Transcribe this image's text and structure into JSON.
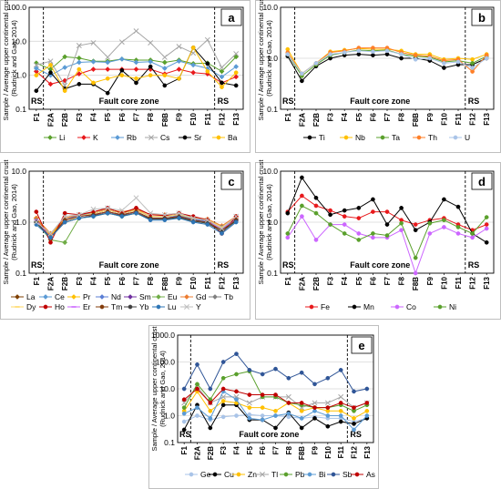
{
  "chart_data": [
    {
      "panel": "a",
      "type": "line",
      "ylabel": "Sample / Average upper continental crust (Rudnick and Gao, 2014)",
      "yscale": "log",
      "ylim": [
        0.1,
        100
      ],
      "yticks": [
        "0.1",
        "1.0",
        "10.0",
        "100.0"
      ],
      "categories": [
        "F1",
        "F2A",
        "F2B",
        "F3",
        "F4",
        "F5",
        "F6",
        "F7",
        "F8",
        "F8B",
        "F9",
        "F10",
        "F11",
        "F12",
        "F13"
      ],
      "zone_labels": {
        "left": "RS",
        "center": "Fault core zone",
        "right": "RS"
      },
      "series": [
        {
          "name": "Li",
          "color": "#5aa02c",
          "marker": "diamond",
          "values": [
            2.3,
            1.5,
            3.5,
            3.2,
            2.6,
            2.6,
            3.0,
            2.8,
            2.8,
            2.4,
            2.8,
            2.2,
            2.3,
            1.3,
            3.5
          ]
        },
        {
          "name": "K",
          "color": "#e8191c",
          "marker": "diamond",
          "values": [
            1.3,
            0.55,
            0.7,
            1.1,
            1.5,
            1.5,
            1.5,
            1.5,
            1.5,
            1.1,
            1.5,
            1.2,
            1.1,
            0.6,
            0.9
          ]
        },
        {
          "name": "Rb",
          "color": "#5b9bd5",
          "marker": "diamond",
          "values": [
            1.6,
            1.0,
            1.7,
            2.4,
            2.5,
            2.4,
            3.0,
            2.4,
            2.5,
            1.6,
            2.6,
            2.0,
            1.6,
            0.9,
            1.8
          ]
        },
        {
          "name": "Cs",
          "color": "#a6a6a6",
          "marker": "x",
          "values": [
            2.0,
            2.6,
            0.5,
            7.5,
            9.0,
            3.4,
            9.5,
            20.0,
            9.0,
            3.4,
            7.0,
            4.5,
            11.0,
            1.7,
            4.3
          ]
        },
        {
          "name": "Sr",
          "color": "#000000",
          "marker": "circle",
          "values": [
            0.35,
            1.2,
            0.4,
            0.55,
            0.55,
            0.3,
            1.4,
            0.6,
            1.8,
            0.5,
            0.8,
            6.5,
            2.2,
            0.6,
            0.5
          ]
        },
        {
          "name": "Ba",
          "color": "#ffc000",
          "marker": "circle",
          "values": [
            1.0,
            2.0,
            0.35,
            1.5,
            0.6,
            0.8,
            1.0,
            0.8,
            1.0,
            1.0,
            0.8,
            6.5,
            1.3,
            0.45,
            1.2
          ]
        }
      ]
    },
    {
      "panel": "b",
      "type": "line",
      "ylabel": "Sample / Average upper continental crust (Rudnick and Gao, 2014)",
      "yscale": "log",
      "ylim": [
        0.1,
        10
      ],
      "yticks": [
        "0.1",
        "1.0",
        "10.0"
      ],
      "categories": [
        "F1",
        "F2A",
        "F2B",
        "F3",
        "F4",
        "F5",
        "F6",
        "F7",
        "F8",
        "F8B",
        "F9",
        "F10",
        "F11",
        "F12",
        "F13"
      ],
      "zone_labels": {
        "left": "RS",
        "center": "Fault core zone",
        "right": "RS"
      },
      "series": [
        {
          "name": "Ti",
          "color": "#000000",
          "marker": "circle",
          "values": [
            1.1,
            0.36,
            0.7,
            1.0,
            1.15,
            1.2,
            1.15,
            1.2,
            1.0,
            1.0,
            0.9,
            0.65,
            0.75,
            0.75,
            1.0
          ]
        },
        {
          "name": "Nb",
          "color": "#ffc000",
          "marker": "circle",
          "values": [
            1.5,
            0.5,
            0.8,
            1.35,
            1.45,
            1.55,
            1.5,
            1.5,
            1.4,
            1.2,
            1.2,
            0.95,
            1.0,
            0.95,
            1.2
          ]
        },
        {
          "name": "Ta",
          "color": "#5aa02c",
          "marker": "circle",
          "values": [
            1.2,
            0.45,
            0.75,
            1.15,
            1.3,
            1.45,
            1.4,
            1.45,
            1.2,
            1.1,
            1.05,
            0.85,
            0.9,
            0.8,
            1.1
          ]
        },
        {
          "name": "Th",
          "color": "#ff7f27",
          "marker": "circle",
          "values": [
            1.3,
            0.5,
            0.8,
            1.3,
            1.4,
            1.6,
            1.6,
            1.6,
            1.3,
            1.15,
            1.1,
            0.9,
            0.95,
            0.55,
            1.15
          ]
        },
        {
          "name": "U",
          "color": "#a9c4e8",
          "marker": "circle",
          "values": [
            1.2,
            0.5,
            0.8,
            1.2,
            1.3,
            1.4,
            1.35,
            1.4,
            1.2,
            0.95,
            1.0,
            0.8,
            0.85,
            0.65,
            1.0
          ]
        }
      ]
    },
    {
      "panel": "c",
      "type": "line",
      "ylabel": "Sample / Average upper continental crust (Rudnick and Gao, 2014)",
      "yscale": "log",
      "ylim": [
        0.1,
        10
      ],
      "yticks": [
        "0.1",
        "1.0",
        "10.0"
      ],
      "categories": [
        "F1",
        "F2A",
        "F2B",
        "F3",
        "F4",
        "F5",
        "F6",
        "F7",
        "F8",
        "F8B",
        "F9",
        "F10",
        "F11",
        "F12",
        "F13"
      ],
      "zone_labels": {
        "left": "RS",
        "center": "Fault core zone",
        "right": "RS"
      },
      "series": [
        {
          "name": "La",
          "color": "#7f3f00",
          "marker": "diamond",
          "values": [
            1.2,
            0.5,
            1.2,
            1.4,
            1.5,
            1.7,
            1.5,
            1.7,
            1.3,
            1.3,
            1.4,
            1.2,
            1.1,
            0.8,
            1.2
          ]
        },
        {
          "name": "Ce",
          "color": "#5b9bd5",
          "marker": "diamond",
          "values": [
            1.1,
            0.5,
            1.1,
            1.3,
            1.4,
            1.6,
            1.4,
            1.6,
            1.2,
            1.2,
            1.3,
            1.1,
            1.0,
            0.75,
            1.1
          ]
        },
        {
          "name": "Pr",
          "color": "#ffc000",
          "marker": "diamond",
          "values": [
            1.2,
            0.55,
            1.2,
            1.4,
            1.5,
            1.7,
            1.5,
            1.75,
            1.3,
            1.3,
            1.4,
            1.2,
            1.1,
            0.8,
            1.2
          ]
        },
        {
          "name": "Nd",
          "color": "#5b7fd5",
          "marker": "diamond",
          "values": [
            1.1,
            0.5,
            1.1,
            1.4,
            1.5,
            1.7,
            1.5,
            1.7,
            1.3,
            1.3,
            1.35,
            1.15,
            1.05,
            0.75,
            1.15
          ]
        },
        {
          "name": "Sm",
          "color": "#7030a0",
          "marker": "diamond",
          "values": [
            1.0,
            0.5,
            1.1,
            1.3,
            1.4,
            1.6,
            1.4,
            1.6,
            1.2,
            1.2,
            1.3,
            1.1,
            1.0,
            0.7,
            1.1
          ]
        },
        {
          "name": "Eu",
          "color": "#70ad47",
          "marker": "diamond",
          "values": [
            1.0,
            0.45,
            0.4,
            1.2,
            1.3,
            1.5,
            1.3,
            1.5,
            1.2,
            1.15,
            1.2,
            1.05,
            0.95,
            0.7,
            1.1
          ]
        },
        {
          "name": "Gd",
          "color": "#ed7d31",
          "marker": "diamond",
          "values": [
            1.2,
            0.6,
            1.2,
            1.4,
            1.6,
            1.8,
            1.6,
            1.8,
            1.4,
            1.4,
            1.5,
            1.25,
            1.15,
            0.85,
            1.3
          ]
        },
        {
          "name": "Tb",
          "color": "#7f7f7f",
          "marker": "diamond",
          "values": [
            1.1,
            0.5,
            1.1,
            1.3,
            1.5,
            1.7,
            1.5,
            1.7,
            1.3,
            1.3,
            1.4,
            1.2,
            1.1,
            0.8,
            1.2
          ]
        },
        {
          "name": "Dy",
          "color": "#ffd966",
          "marker": "dash",
          "values": [
            1.1,
            0.5,
            1.0,
            1.3,
            1.5,
            1.7,
            1.5,
            1.7,
            1.3,
            1.3,
            1.4,
            1.2,
            1.1,
            0.8,
            1.2
          ]
        },
        {
          "name": "Ho",
          "color": "#c00000",
          "marker": "circle",
          "values": [
            1.6,
            0.4,
            1.5,
            1.4,
            1.6,
            1.9,
            1.5,
            1.9,
            1.4,
            1.35,
            1.5,
            1.3,
            1.1,
            0.6,
            1.3
          ]
        },
        {
          "name": "Er",
          "color": "#cc66ff",
          "marker": "dash",
          "values": [
            1.1,
            0.5,
            1.1,
            1.3,
            1.4,
            1.6,
            1.4,
            1.6,
            1.2,
            1.2,
            1.3,
            1.1,
            1.0,
            0.75,
            1.1
          ]
        },
        {
          "name": "Tm",
          "color": "#833c0b",
          "marker": "circle",
          "values": [
            1.0,
            0.5,
            1.1,
            1.3,
            1.4,
            1.6,
            1.4,
            1.6,
            1.2,
            1.2,
            1.3,
            1.1,
            1.0,
            0.7,
            1.1
          ]
        },
        {
          "name": "Yb",
          "color": "#404040",
          "marker": "circle",
          "values": [
            1.0,
            0.5,
            1.0,
            1.2,
            1.35,
            1.5,
            1.35,
            1.5,
            1.15,
            1.15,
            1.25,
            1.05,
            0.95,
            0.65,
            1.05
          ]
        },
        {
          "name": "Lu",
          "color": "#2e75b6",
          "marker": "circle",
          "values": [
            0.9,
            0.5,
            1.0,
            1.2,
            1.3,
            1.5,
            1.3,
            1.5,
            1.1,
            1.1,
            1.2,
            1.0,
            0.9,
            0.6,
            1.0
          ]
        },
        {
          "name": "Y",
          "color": "#bfbfbf",
          "marker": "x",
          "values": [
            1.0,
            0.6,
            1.3,
            1.4,
            1.8,
            1.9,
            1.7,
            3.0,
            1.5,
            1.4,
            1.5,
            1.2,
            1.1,
            0.75,
            1.3
          ]
        }
      ]
    },
    {
      "panel": "d",
      "type": "line",
      "ylabel": "Sample / Average upper continental crust (Rudnick and Gao, 2014)",
      "yscale": "log",
      "ylim": [
        0.1,
        10
      ],
      "yticks": [
        "0.1",
        "1.0",
        "10.0"
      ],
      "categories": [
        "F1",
        "F2A",
        "F2B",
        "F3",
        "F4",
        "F5",
        "F6",
        "F7",
        "F8",
        "F8B",
        "F9",
        "F10",
        "F11",
        "F12",
        "F13"
      ],
      "zone_labels": {
        "left": "RS",
        "center": "Fault core zone",
        "right": "RS"
      },
      "series": [
        {
          "name": "Fe",
          "color": "#e8191c",
          "marker": "circle",
          "values": [
            1.6,
            3.3,
            2.1,
            1.7,
            1.3,
            1.2,
            1.6,
            1.6,
            1.1,
            0.9,
            1.1,
            1.2,
            0.9,
            0.7,
            0.9
          ]
        },
        {
          "name": "Mn",
          "color": "#000000",
          "marker": "circle",
          "values": [
            1.5,
            7.5,
            3.0,
            1.4,
            1.7,
            1.9,
            2.8,
            0.9,
            1.9,
            0.7,
            1.0,
            2.8,
            2.0,
            0.6,
            0.4
          ]
        },
        {
          "name": "Co",
          "color": "#cc66ff",
          "marker": "circle",
          "values": [
            0.5,
            1.3,
            0.45,
            0.9,
            0.9,
            0.6,
            0.5,
            0.5,
            0.7,
            0.1,
            0.6,
            0.8,
            0.6,
            0.5,
            0.75
          ]
        },
        {
          "name": "Ni",
          "color": "#5aa02c",
          "marker": "circle",
          "values": [
            0.6,
            2.1,
            1.5,
            0.9,
            0.6,
            0.45,
            0.6,
            0.55,
            0.95,
            0.2,
            0.95,
            1.1,
            0.8,
            0.6,
            1.25
          ]
        }
      ]
    },
    {
      "panel": "e",
      "type": "line",
      "ylabel": "Sample / Average upper continental crust (Rudnick and Gao, 2014)",
      "yscale": "log",
      "ylim": [
        0.1,
        1000
      ],
      "yticks": [
        "0.1",
        "1.0",
        "10.0",
        "100.0",
        "1000.0"
      ],
      "categories": [
        "F1",
        "F2A",
        "F2B",
        "F3",
        "F4",
        "F5",
        "F6",
        "F7",
        "F8",
        "F8B",
        "F9",
        "F10",
        "F11",
        "F12",
        "F13"
      ],
      "zone_labels": {
        "left": "RS",
        "center": "Fault core zone",
        "right": "RS"
      },
      "series": [
        {
          "name": "Ge",
          "color": "#a9c4e8",
          "marker": "circle",
          "values": [
            0.6,
            1.0,
            0.7,
            0.9,
            1.0,
            1.1,
            1.0,
            1.0,
            0.9,
            0.8,
            0.9,
            0.8,
            0.8,
            0.6,
            0.8
          ]
        },
        {
          "name": "Cu",
          "color": "#000000",
          "marker": "circle",
          "values": [
            0.3,
            2.5,
            0.35,
            2.5,
            2.5,
            0.7,
            0.7,
            0.35,
            1.3,
            0.35,
            0.8,
            0.4,
            0.6,
            0.5,
            0.8
          ]
        },
        {
          "name": "Zn",
          "color": "#ffc000",
          "marker": "circle",
          "values": [
            1.5,
            8.0,
            1.5,
            3.5,
            3.0,
            2.0,
            2.0,
            1.5,
            3.0,
            1.5,
            2.0,
            1.5,
            1.5,
            0.8,
            1.5
          ]
        },
        {
          "name": "Tl",
          "color": "#a6a6a6",
          "marker": "x",
          "values": [
            3.0,
            12.0,
            3.0,
            5.0,
            5.0,
            3.0,
            5.0,
            5.0,
            5.0,
            2.0,
            3.0,
            3.0,
            5.0,
            2.0,
            3.0
          ]
        },
        {
          "name": "Pb",
          "color": "#5aa02c",
          "marker": "circle",
          "values": [
            2.0,
            15.0,
            4.0,
            25.0,
            35.0,
            45.0,
            5.0,
            5.0,
            3.0,
            2.5,
            2.0,
            2.0,
            2.5,
            1.5,
            2.5
          ]
        },
        {
          "name": "Bi",
          "color": "#5b9bd5",
          "marker": "circle",
          "values": [
            1.2,
            2.0,
            0.8,
            8.0,
            4.0,
            0.8,
            0.7,
            1.0,
            1.2,
            0.8,
            1.5,
            1.0,
            1.0,
            0.3,
            1.0
          ]
        },
        {
          "name": "Sb",
          "color": "#2f5597",
          "marker": "circle",
          "values": [
            10.0,
            80.0,
            10.0,
            100.0,
            200.0,
            50.0,
            35.0,
            55.0,
            25.0,
            40.0,
            15.0,
            25.0,
            50.0,
            8.0,
            10.0
          ]
        },
        {
          "name": "As",
          "color": "#c00000",
          "marker": "circle",
          "values": [
            4.0,
            10.0,
            3.0,
            10.0,
            8.0,
            6.0,
            6.0,
            6.0,
            3.0,
            3.0,
            2.0,
            2.0,
            3.0,
            2.0,
            3.0
          ]
        }
      ]
    }
  ]
}
